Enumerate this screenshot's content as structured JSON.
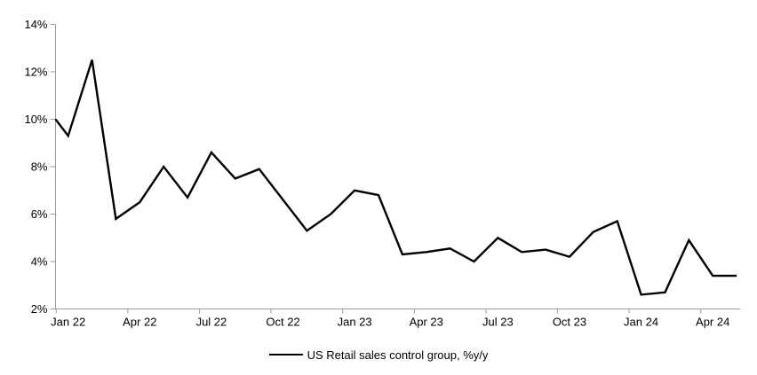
{
  "chart_data": {
    "type": "line",
    "title": "",
    "x": [
      "Jan 22",
      "Feb 22",
      "Mar 22",
      "Apr 22",
      "May 22",
      "Jun 22",
      "Jul 22",
      "Aug 22",
      "Sep 22",
      "Oct 22",
      "Nov 22",
      "Dec 22",
      "Jan 23",
      "Feb 23",
      "Mar 23",
      "Apr 23",
      "May 23",
      "Jun 23",
      "Jul 23",
      "Aug 23",
      "Sep 23",
      "Oct 23",
      "Nov 23",
      "Dec 23",
      "Jan 24",
      "Feb 24",
      "Mar 24",
      "Apr 24",
      "May 24"
    ],
    "series": [
      {
        "name": "US Retail sales control group, %y/y",
        "color": "#000000",
        "values": [
          9.3,
          12.5,
          5.8,
          6.5,
          8.0,
          6.7,
          8.6,
          7.5,
          7.9,
          6.6,
          5.3,
          6.0,
          7.0,
          6.8,
          4.3,
          4.4,
          4.55,
          4.0,
          5.0,
          4.4,
          4.5,
          4.2,
          5.25,
          5.7,
          2.6,
          2.7,
          4.9,
          3.4,
          3.4
        ],
        "lead_in_value_at_left_edge": 10.0
      }
    ],
    "y_axis": {
      "min": 2,
      "max": 14,
      "step": 2,
      "tick_labels": [
        "2%",
        "4%",
        "6%",
        "8%",
        "10%",
        "12%",
        "14%"
      ]
    },
    "x_axis": {
      "tick_labels": [
        "Jan 22",
        "Apr 22",
        "Jul 22",
        "Oct 22",
        "Jan 23",
        "Apr 23",
        "Jul 23",
        "Oct 23",
        "Jan 24",
        "Apr 24"
      ],
      "tick_interval_months": 3
    },
    "legend": {
      "position": "bottom-center",
      "entries": [
        {
          "label": "US Retail sales control group, %y/y",
          "color": "#000000"
        }
      ]
    },
    "grid": false,
    "colors": {
      "axis": "#9a9a9a",
      "text": "#000000",
      "background": "#ffffff"
    },
    "line_width": 2.4
  }
}
